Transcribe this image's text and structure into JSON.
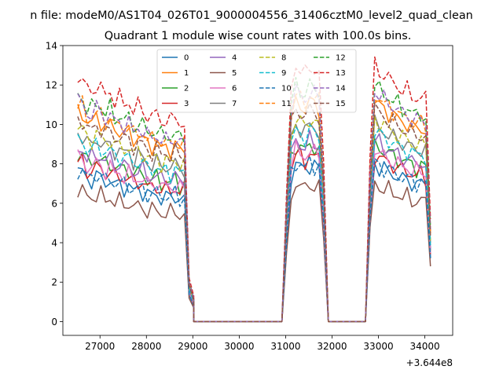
{
  "chart_data": {
    "type": "line",
    "suptitle": "n file: modeM0/AS1T04_026T01_9000004556_31406cztM0_level2_quad_clean",
    "title": "Quadrant 1 module wise count rates with 100.0s bins.",
    "xlabel": "",
    "ylabel": "",
    "offset_label": "+3.644e8",
    "xlim": [
      26200,
      34600
    ],
    "ylim": [
      -0.7,
      14
    ],
    "xticks": [
      27000,
      28000,
      29000,
      30000,
      31000,
      32000,
      33000,
      34000
    ],
    "xtick_labels": [
      "27000",
      "28000",
      "29000",
      "30000",
      "31000",
      "32000",
      "33000",
      "34000"
    ],
    "yticks": [
      0,
      2,
      4,
      6,
      8,
      10,
      12,
      14
    ],
    "ytick_labels": [
      "0",
      "2",
      "4",
      "6",
      "8",
      "10",
      "12",
      "14"
    ],
    "legend_position": "upper-center",
    "grid": false,
    "x_start": 26520,
    "bin_step": 100,
    "segments": [
      {
        "start": 26520,
        "count": 24,
        "shape": [
          0.95,
          0.95,
          0.9,
          0.9,
          0.92,
          0.91,
          0.88,
          0.9,
          0.86,
          0.87,
          0.85,
          0.86,
          0.82,
          0.84,
          0.83,
          0.8,
          0.8,
          0.81,
          0.78,
          0.79,
          0.78,
          0.8,
          0.77,
          0.78
        ]
      },
      {
        "start": 28920,
        "count": 2,
        "shape": [
          0.17,
          0.1
        ]
      },
      {
        "start": 29020,
        "count": 20,
        "shape": [
          0,
          0,
          0,
          0,
          0,
          0,
          0,
          0,
          0,
          0,
          0,
          0,
          0,
          0,
          0,
          0,
          0,
          0,
          0,
          0
        ]
      },
      {
        "start": 31020,
        "count": 8,
        "shape": [
          0.5,
          0.92,
          1.0,
          0.98,
          0.96,
          1.0,
          0.98,
          0.97
        ]
      },
      {
        "start": 31820,
        "count": 1,
        "shape": [
          0.6
        ]
      },
      {
        "start": 31920,
        "count": 9,
        "shape": [
          0,
          0,
          0,
          0,
          0,
          0,
          0,
          0,
          0
        ]
      },
      {
        "start": 32820,
        "count": 1,
        "shape": [
          0.65
        ]
      },
      {
        "start": 32920,
        "count": 12,
        "shape": [
          1.0,
          0.98,
          0.96,
          0.95,
          0.93,
          0.92,
          0.9,
          0.9,
          0.88,
          0.87,
          0.88,
          0.86
        ]
      },
      {
        "start": 34120,
        "count": 1,
        "shape": [
          0.4
        ]
      }
    ],
    "series": [
      {
        "name": "0",
        "color": "#1f77b4",
        "dashed": false,
        "level": 8.0
      },
      {
        "name": "1",
        "color": "#ff7f0e",
        "dashed": false,
        "level": 11.2
      },
      {
        "name": "2",
        "color": "#2ca02c",
        "dashed": false,
        "level": 9.0
      },
      {
        "name": "3",
        "color": "#d62728",
        "dashed": false,
        "level": 8.5
      },
      {
        "name": "4",
        "color": "#9467bd",
        "dashed": false,
        "level": 9.2
      },
      {
        "name": "5",
        "color": "#8c564b",
        "dashed": false,
        "level": 7.0
      },
      {
        "name": "6",
        "color": "#e377c2",
        "dashed": false,
        "level": 8.7
      },
      {
        "name": "7",
        "color": "#7f7f7f",
        "dashed": false,
        "level": 10.0
      },
      {
        "name": "8",
        "color": "#bcbd22",
        "dashed": true,
        "level": 10.3
      },
      {
        "name": "9",
        "color": "#17becf",
        "dashed": true,
        "level": 9.7
      },
      {
        "name": "10",
        "color": "#1f77b4",
        "dashed": true,
        "level": 8.1
      },
      {
        "name": "11",
        "color": "#ff7f0e",
        "dashed": true,
        "level": 11.5
      },
      {
        "name": "12",
        "color": "#2ca02c",
        "dashed": true,
        "level": 12.0
      },
      {
        "name": "13",
        "color": "#d62728",
        "dashed": true,
        "level": 13.0
      },
      {
        "name": "14",
        "color": "#9467bd",
        "dashed": true,
        "level": 11.7
      },
      {
        "name": "15",
        "color": "#8c564b",
        "dashed": true,
        "level": 10.8
      }
    ]
  }
}
